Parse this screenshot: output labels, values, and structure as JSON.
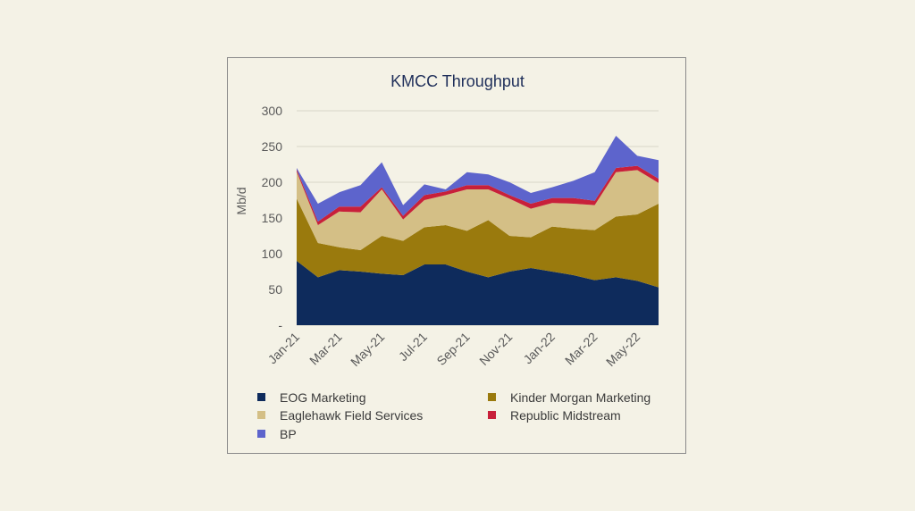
{
  "chart_data": {
    "type": "area",
    "stacked": true,
    "title": "KMCC Throughput",
    "ylabel": "Mb/d",
    "xlabel": "",
    "ylim": [
      0,
      300
    ],
    "y_ticks": [
      0,
      50,
      100,
      150,
      200,
      250,
      300
    ],
    "y_tick_labels": [
      "-",
      "50",
      "100",
      "150",
      "200",
      "250",
      "300"
    ],
    "grid": true,
    "legend_position": "bottom",
    "x": [
      "Jan-21",
      "Feb-21",
      "Mar-21",
      "Apr-21",
      "May-21",
      "Jun-21",
      "Jul-21",
      "Aug-21",
      "Sep-21",
      "Oct-21",
      "Nov-21",
      "Dec-21",
      "Jan-22",
      "Feb-22",
      "Mar-22",
      "Apr-22",
      "May-22",
      "Jun-22"
    ],
    "x_tick_labels": [
      "Jan-21",
      "",
      "Mar-21",
      "",
      "May-21",
      "",
      "Jul-21",
      "",
      "Sep-21",
      "",
      "Nov-21",
      "",
      "Jan-22",
      "",
      "Mar-22",
      "",
      "May-22",
      ""
    ],
    "series": [
      {
        "name": "EOG Marketing",
        "color": "#0e2b5c",
        "values": [
          90,
          67,
          77,
          75,
          72,
          70,
          85,
          85,
          75,
          67,
          75,
          80,
          75,
          70,
          63,
          67,
          62,
          53
        ]
      },
      {
        "name": "Kinder Morgan Marketing",
        "color": "#9a7a0d",
        "values": [
          87,
          48,
          32,
          30,
          53,
          48,
          52,
          55,
          57,
          80,
          50,
          43,
          63,
          65,
          70,
          85,
          93,
          117
        ]
      },
      {
        "name": "Eaglehawk Field Services",
        "color": "#d4bf86",
        "values": [
          38,
          25,
          50,
          53,
          65,
          30,
          38,
          42,
          58,
          43,
          52,
          40,
          33,
          35,
          35,
          62,
          62,
          29
        ]
      },
      {
        "name": "Republic Midstream",
        "color": "#c8203a",
        "values": [
          3,
          5,
          7,
          8,
          3,
          5,
          7,
          5,
          6,
          6,
          5,
          7,
          7,
          8,
          6,
          6,
          6,
          6
        ]
      },
      {
        "name": "BP",
        "color": "#5d64cc",
        "values": [
          2,
          25,
          20,
          30,
          35,
          15,
          15,
          3,
          18,
          15,
          18,
          15,
          15,
          24,
          40,
          45,
          14,
          26
        ]
      }
    ]
  }
}
